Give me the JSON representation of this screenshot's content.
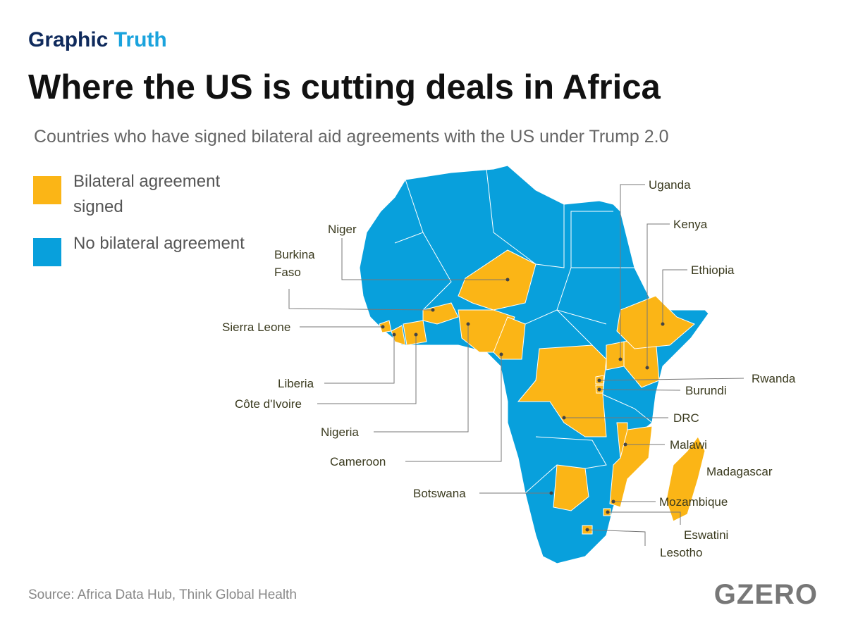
{
  "header": {
    "kicker": {
      "part1": "Graphic",
      "part2": "Truth"
    },
    "title": "Where the US is cutting deals in Africa",
    "subtitle": "Countries who have signed bilateral aid agreements with the US under Trump 2.0"
  },
  "legend": [
    {
      "label": "Bilateral agreement signed",
      "color": "#fbb516"
    },
    {
      "label": "No bilateral agreement",
      "color": "#08a0dc"
    }
  ],
  "map": {
    "labels": [
      "Uganda",
      "Kenya",
      "Ethiopia",
      "Niger",
      "Burkina Faso",
      "Sierra Leone",
      "Liberia",
      "Côte d'Ivoire",
      "Nigeria",
      "Cameroon",
      "Botswana",
      "Rwanda",
      "Burundi",
      "DRC",
      "Malawi",
      "Madagascar",
      "Mozambique",
      "Eswatini",
      "Lesotho"
    ]
  },
  "footer": {
    "source": "Source: Africa Data Hub, Think Global Health",
    "logo": "GZERO"
  }
}
